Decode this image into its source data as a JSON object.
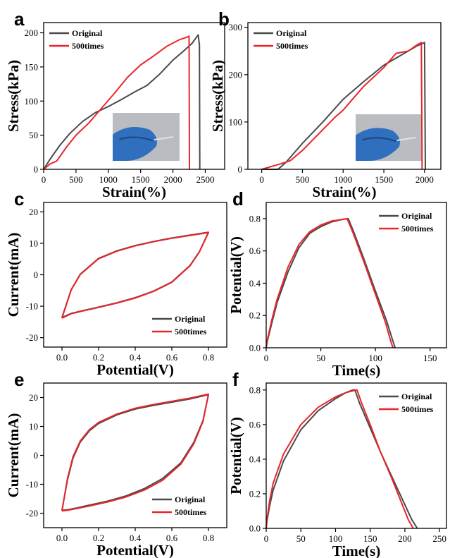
{
  "colors": {
    "original": "#4a4a4a",
    "times500": "#e8262b"
  },
  "panels": [
    {
      "id": "a",
      "letter": "a",
      "xlabel": "Strain(%)",
      "ylabel": "Stress(kPa)",
      "xticks": [
        "0",
        "500",
        "1000",
        "1500",
        "2000",
        "2500"
      ],
      "yticks": [
        "0",
        "50",
        "100",
        "150",
        "200"
      ],
      "legend": [
        "Original",
        "500times"
      ],
      "has_photo": true
    },
    {
      "id": "b",
      "letter": "b",
      "xlabel": "Strain(%)",
      "ylabel": "Stress(kPa)",
      "xticks": [
        "0",
        "500",
        "1000",
        "1500",
        "2000"
      ],
      "yticks": [
        "0",
        "100",
        "200",
        "300"
      ],
      "legend": [
        "Original",
        "500times"
      ],
      "has_photo": true
    },
    {
      "id": "c",
      "letter": "c",
      "xlabel": "Potential(V)",
      "ylabel": "Current(mA)",
      "xticks": [
        "0.0",
        "0.2",
        "0.4",
        "0.6",
        "0.8"
      ],
      "yticks": [
        "-20",
        "-10",
        "0",
        "10",
        "20"
      ],
      "legend": [
        "Original",
        "500times"
      ],
      "has_photo": false
    },
    {
      "id": "d",
      "letter": "d",
      "xlabel": "Time(s)",
      "ylabel": "Potential(V)",
      "xticks": [
        "0",
        "50",
        "100",
        "150"
      ],
      "yticks": [
        "0.0",
        "0.2",
        "0.4",
        "0.6",
        "0.8"
      ],
      "legend": [
        "Original",
        "500times"
      ],
      "has_photo": false
    },
    {
      "id": "e",
      "letter": "e",
      "xlabel": "Potential(V)",
      "ylabel": "Current(mA)",
      "xticks": [
        "0.0",
        "0.2",
        "0.4",
        "0.6",
        "0.8"
      ],
      "yticks": [
        "-20",
        "-10",
        "0",
        "10",
        "20"
      ],
      "legend": [
        "Original",
        "500times"
      ],
      "has_photo": false
    },
    {
      "id": "f",
      "letter": "f",
      "xlabel": "Time(s)",
      "ylabel": "Potential(V)",
      "xticks": [
        "0",
        "50",
        "100",
        "150",
        "200",
        "250"
      ],
      "yticks": [
        "0.0",
        "0.2",
        "0.4",
        "0.6",
        "0.8"
      ],
      "legend": [
        "Original",
        "500times"
      ],
      "has_photo": false
    }
  ],
  "chart_data": [
    {
      "panel": "a",
      "type": "line",
      "xlabel": "Strain(%)",
      "ylabel": "Stress(kPa)",
      "xlim": [
        0,
        2800
      ],
      "ylim": [
        0,
        215
      ],
      "xticks": [
        0,
        500,
        1000,
        1500,
        2000,
        2500
      ],
      "yticks": [
        0,
        50,
        100,
        150,
        200
      ],
      "legend_position": "top-left",
      "series": [
        {
          "name": "Original",
          "color": "#4a4a4a",
          "x": [
            0,
            100,
            250,
            400,
            600,
            800,
            1000,
            1200,
            1400,
            1600,
            1800,
            2000,
            2150,
            2300,
            2390,
            2410,
            2415
          ],
          "y": [
            0,
            15,
            35,
            52,
            70,
            83,
            92,
            102,
            113,
            123,
            140,
            160,
            172,
            185,
            197,
            182,
            0
          ]
        },
        {
          "name": "500times",
          "color": "#e8262b",
          "x": [
            0,
            100,
            200,
            350,
            500,
            700,
            900,
            1100,
            1300,
            1500,
            1700,
            1900,
            2100,
            2200,
            2250,
            2255
          ],
          "y": [
            0,
            8,
            12,
            32,
            50,
            68,
            90,
            112,
            135,
            153,
            166,
            180,
            190,
            193,
            195,
            0
          ]
        }
      ]
    },
    {
      "panel": "b",
      "type": "line",
      "xlabel": "Strain(%)",
      "ylabel": "Stress(kPa)",
      "xlim": [
        -170,
        2200
      ],
      "ylim": [
        0,
        310
      ],
      "xticks": [
        0,
        500,
        1000,
        1500,
        2000
      ],
      "yticks": [
        0,
        100,
        200,
        300
      ],
      "legend_position": "top-left",
      "series": [
        {
          "name": "Original",
          "color": "#4a4a4a",
          "x": [
            0,
            200,
            300,
            500,
            750,
            1000,
            1250,
            1500,
            1750,
            1900,
            2000,
            2010
          ],
          "y": [
            0,
            0,
            15,
            55,
            100,
            148,
            185,
            220,
            245,
            260,
            268,
            0
          ]
        },
        {
          "name": "500times",
          "color": "#e8262b",
          "x": [
            0,
            200,
            350,
            500,
            700,
            900,
            1000,
            1100,
            1250,
            1500,
            1650,
            1800,
            1900,
            1960,
            1970
          ],
          "y": [
            0,
            10,
            18,
            40,
            75,
            110,
            125,
            145,
            175,
            215,
            245,
            250,
            262,
            268,
            0
          ]
        }
      ]
    },
    {
      "panel": "c",
      "type": "line",
      "xlabel": "Potential(V)",
      "ylabel": "Current(mA)",
      "xlim": [
        -0.1,
        0.9
      ],
      "ylim": [
        -23,
        23
      ],
      "xticks": [
        0.0,
        0.2,
        0.4,
        0.6,
        0.8
      ],
      "yticks": [
        -20,
        -10,
        0,
        10,
        20
      ],
      "legend_position": "bottom-right",
      "series": [
        {
          "name": "Original",
          "color": "#4a4a4a",
          "x": [
            0.0,
            0.05,
            0.1,
            0.2,
            0.3,
            0.4,
            0.5,
            0.6,
            0.7,
            0.8,
            0.75,
            0.7,
            0.6,
            0.5,
            0.4,
            0.3,
            0.2,
            0.1,
            0.05,
            0.0
          ],
          "y": [
            -13.6,
            -4.8,
            0.2,
            5.2,
            7.6,
            9.3,
            10.6,
            11.7,
            12.6,
            13.5,
            7.3,
            3.0,
            -2.3,
            -5.2,
            -7.3,
            -8.9,
            -10.3,
            -11.6,
            -12.3,
            -13.6
          ]
        },
        {
          "name": "500times",
          "color": "#e8262b",
          "x": [
            0.0,
            0.05,
            0.1,
            0.2,
            0.3,
            0.4,
            0.5,
            0.6,
            0.7,
            0.8,
            0.75,
            0.7,
            0.6,
            0.5,
            0.4,
            0.3,
            0.2,
            0.1,
            0.05,
            0.0
          ],
          "y": [
            -13.8,
            -4.9,
            0.1,
            5.1,
            7.5,
            9.2,
            10.5,
            11.6,
            12.5,
            13.4,
            7.2,
            2.9,
            -2.4,
            -5.3,
            -7.4,
            -9.0,
            -10.4,
            -11.7,
            -12.4,
            -13.8
          ]
        }
      ]
    },
    {
      "panel": "d",
      "type": "line",
      "xlabel": "Time(s)",
      "ylabel": "Potential(V)",
      "xlim": [
        0,
        165
      ],
      "ylim": [
        0,
        0.9
      ],
      "xticks": [
        0,
        50,
        100,
        150
      ],
      "yticks": [
        0.0,
        0.2,
        0.4,
        0.6,
        0.8
      ],
      "legend_position": "top-right",
      "series": [
        {
          "name": "Original",
          "color": "#4a4a4a",
          "x": [
            0,
            1,
            5,
            10,
            20,
            30,
            40,
            50,
            60,
            70,
            75,
            80,
            90,
            100,
            110,
            116,
            118
          ],
          "y": [
            0,
            0.04,
            0.15,
            0.28,
            0.47,
            0.62,
            0.71,
            0.75,
            0.78,
            0.795,
            0.8,
            0.72,
            0.54,
            0.35,
            0.17,
            0.04,
            0
          ]
        },
        {
          "name": "500times",
          "color": "#e8262b",
          "x": [
            0,
            1,
            5,
            10,
            20,
            30,
            40,
            50,
            60,
            70,
            74,
            79,
            89,
            99,
            109,
            114,
            116
          ],
          "y": [
            0,
            0.05,
            0.17,
            0.3,
            0.5,
            0.64,
            0.72,
            0.76,
            0.785,
            0.795,
            0.8,
            0.72,
            0.54,
            0.35,
            0.16,
            0.04,
            0
          ]
        }
      ]
    },
    {
      "panel": "e",
      "type": "line",
      "xlabel": "Potential(V)",
      "ylabel": "Current(mA)",
      "xlim": [
        -0.1,
        0.9
      ],
      "ylim": [
        -25,
        25
      ],
      "xticks": [
        0.0,
        0.2,
        0.4,
        0.6,
        0.8
      ],
      "yticks": [
        -20,
        -10,
        0,
        10,
        20
      ],
      "legend_position": "bottom-right",
      "series": [
        {
          "name": "Original",
          "color": "#4a4a4a",
          "x": [
            0.0,
            0.03,
            0.06,
            0.1,
            0.15,
            0.2,
            0.3,
            0.4,
            0.5,
            0.6,
            0.7,
            0.8,
            0.77,
            0.72,
            0.65,
            0.55,
            0.45,
            0.35,
            0.25,
            0.15,
            0.08,
            0.03,
            0.0
          ],
          "y": [
            -19.0,
            -8.5,
            -1.0,
            4.6,
            8.5,
            11.0,
            14.0,
            16.0,
            17.3,
            18.4,
            19.5,
            21.0,
            12.0,
            4.5,
            -2.5,
            -8.0,
            -11.5,
            -14.0,
            -15.8,
            -17.2,
            -18.2,
            -18.8,
            -19.0
          ]
        },
        {
          "name": "500times",
          "color": "#e8262b",
          "x": [
            0.0,
            0.03,
            0.06,
            0.1,
            0.15,
            0.2,
            0.3,
            0.4,
            0.5,
            0.6,
            0.7,
            0.8,
            0.77,
            0.72,
            0.65,
            0.55,
            0.45,
            0.35,
            0.25,
            0.15,
            0.08,
            0.03,
            0.0
          ],
          "y": [
            -19.2,
            -8.0,
            -0.5,
            5.0,
            8.9,
            11.4,
            14.3,
            16.3,
            17.6,
            18.7,
            19.8,
            21.2,
            11.7,
            4.0,
            -3.0,
            -8.6,
            -12.0,
            -14.4,
            -16.1,
            -17.5,
            -18.4,
            -19.0,
            -19.2
          ]
        }
      ]
    },
    {
      "panel": "f",
      "type": "line",
      "xlabel": "Time(s)",
      "ylabel": "Potential(V)",
      "xlim": [
        0,
        260
      ],
      "ylim": [
        0,
        0.84
      ],
      "xticks": [
        0,
        50,
        100,
        150,
        200,
        250
      ],
      "yticks": [
        0.0,
        0.2,
        0.4,
        0.6,
        0.8
      ],
      "legend_position": "top-right",
      "series": [
        {
          "name": "Original",
          "color": "#4a4a4a",
          "x": [
            0,
            1,
            5,
            10,
            25,
            50,
            75,
            100,
            115,
            125,
            128,
            135,
            150,
            165,
            180,
            195,
            210,
            218
          ],
          "y": [
            0,
            0.04,
            0.13,
            0.22,
            0.39,
            0.57,
            0.68,
            0.75,
            0.785,
            0.8,
            0.8,
            0.72,
            0.58,
            0.44,
            0.31,
            0.18,
            0.05,
            0
          ]
        },
        {
          "name": "500times",
          "color": "#e8262b",
          "x": [
            0,
            1,
            5,
            10,
            25,
            50,
            75,
            100,
            115,
            125,
            131,
            138,
            150,
            165,
            180,
            195,
            205,
            212
          ],
          "y": [
            0,
            0.05,
            0.16,
            0.26,
            0.43,
            0.6,
            0.7,
            0.76,
            0.785,
            0.795,
            0.8,
            0.72,
            0.6,
            0.44,
            0.3,
            0.15,
            0.05,
            0
          ]
        }
      ]
    }
  ]
}
